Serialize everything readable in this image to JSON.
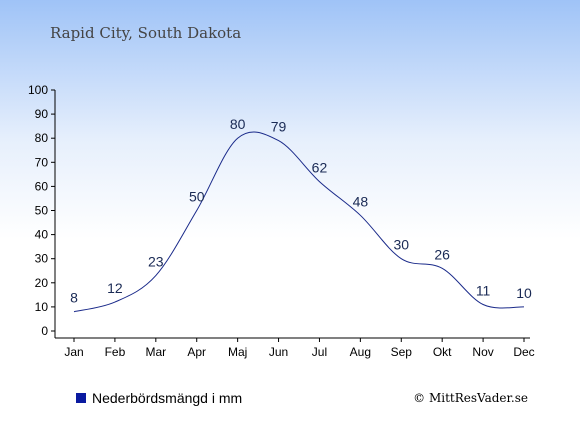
{
  "chart_data": {
    "type": "line",
    "title": "Rapid City, South Dakota",
    "categories": [
      "Jan",
      "Feb",
      "Mar",
      "Apr",
      "Maj",
      "Jun",
      "Jul",
      "Aug",
      "Sep",
      "Okt",
      "Nov",
      "Dec"
    ],
    "series": [
      {
        "name": "Nederbördsmängd i mm",
        "values": [
          8,
          12,
          23,
          50,
          80,
          79,
          62,
          48,
          30,
          26,
          11,
          10
        ]
      }
    ],
    "yticks": [
      0,
      10,
      20,
      30,
      40,
      50,
      60,
      70,
      80,
      90,
      100
    ],
    "ylim": [
      0,
      100
    ],
    "grid": false,
    "legend": "bottom-left",
    "line_color": "#1a2a8a",
    "legend_color": "#0a1aa0",
    "background_top": "#9fc3f7",
    "background_bottom": "#ffffff"
  },
  "credit": "© MittResVader.se"
}
